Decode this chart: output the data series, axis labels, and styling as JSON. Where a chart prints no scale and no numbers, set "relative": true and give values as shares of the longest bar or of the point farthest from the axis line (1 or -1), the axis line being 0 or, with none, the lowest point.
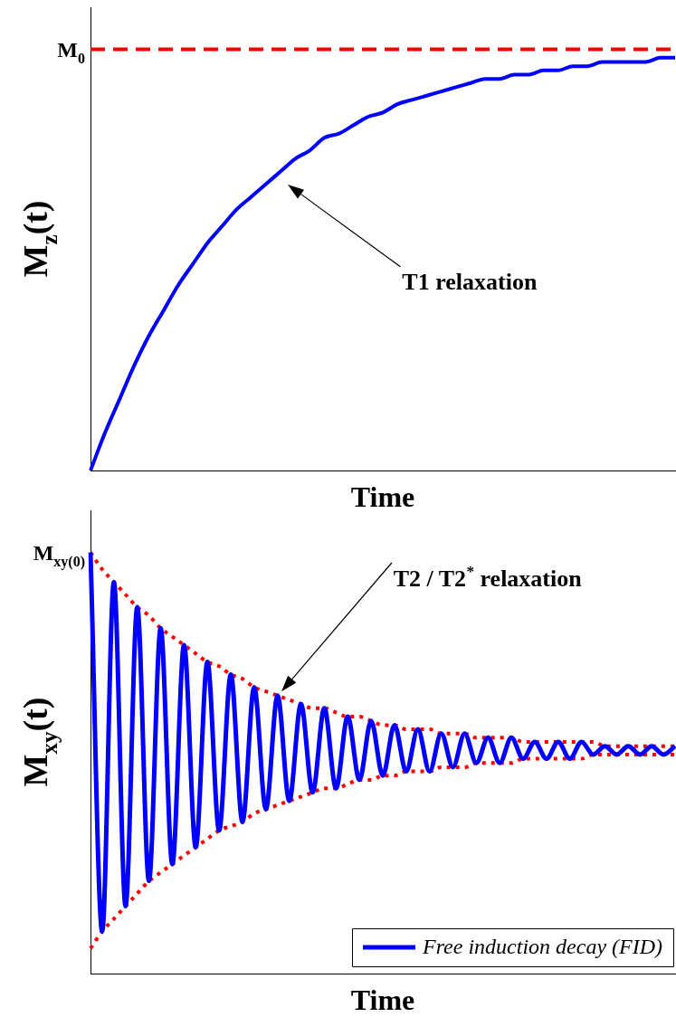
{
  "chart_data": [
    {
      "type": "line",
      "relative": true,
      "xlabel": "Time",
      "ylabel": "M$_{z}$(t)",
      "categories": [
        null,
        null,
        null,
        null,
        null,
        null,
        null,
        null,
        null,
        null,
        null,
        null,
        null,
        null,
        null,
        null,
        null,
        null,
        null,
        null,
        null,
        null,
        null,
        null,
        null,
        null,
        null,
        null,
        null,
        null,
        null,
        null,
        null,
        null,
        null,
        null,
        null,
        null,
        null,
        null,
        null
      ],
      "series": [
        {
          "color": "#0000ff",
          "values": [
            0,
            0.09,
            0.17,
            0.25,
            0.32,
            0.38,
            0.44,
            0.49,
            0.54,
            0.58,
            0.62,
            0.65,
            0.68,
            0.71,
            0.74,
            0.76,
            0.79,
            0.8,
            0.82,
            0.84,
            0.85,
            0.87,
            0.88,
            0.89,
            0.9,
            0.91,
            0.92,
            0.93,
            0.93,
            0.94,
            0.94,
            0.95,
            0.95,
            0.96,
            0.96,
            0.97,
            0.97,
            0.97,
            0.97,
            0.98,
            0.98
          ]
        },
        {
          "color": "#ff0000",
          "line_style": "dashed",
          "values": [
            1,
            1,
            1,
            1,
            1,
            1,
            1,
            1,
            1,
            1,
            1,
            1,
            1,
            1,
            1,
            1,
            1,
            1,
            1,
            1,
            1,
            1,
            1,
            1,
            1,
            1,
            1,
            1,
            1,
            1,
            1,
            1,
            1,
            1,
            1,
            1,
            1,
            1,
            1,
            1,
            1
          ]
        }
      ],
      "annotations": [
        "M$_{0}$",
        "T1 relaxation"
      ]
    },
    {
      "type": "line",
      "relative": true,
      "xlabel": "Time",
      "ylabel": "M$_{xy}$(t)",
      "legend": "bottom right",
      "categories": [
        null,
        null,
        null,
        null,
        null,
        null,
        null,
        null,
        null,
        null,
        null,
        null,
        null,
        null,
        null,
        null,
        null,
        null,
        null,
        null,
        null,
        null,
        null,
        null,
        null,
        null,
        null,
        null,
        null,
        null,
        null,
        null,
        null,
        null,
        null,
        null,
        null,
        null,
        null,
        null,
        null,
        null,
        null,
        null,
        null,
        null,
        null,
        null,
        null,
        null,
        null
      ],
      "series": [
        {
          "name": "Free induction decay (FID)",
          "color": "#0000ff",
          "values": [
            1.0,
            0.1,
            0.93,
            0.16,
            0.87,
            0.22,
            0.82,
            0.26,
            0.78,
            0.3,
            0.74,
            0.34,
            0.71,
            0.36,
            0.68,
            0.39,
            0.66,
            0.41,
            0.64,
            0.43,
            0.63,
            0.44,
            0.61,
            0.46,
            0.6,
            0.47,
            0.59,
            0.48,
            0.58,
            0.48,
            0.57,
            0.49,
            0.57,
            0.5,
            0.56,
            0.5,
            0.56,
            0.51,
            0.55,
            0.51,
            0.55,
            0.51,
            0.55,
            0.52,
            0.54,
            0.52,
            0.54,
            0.52,
            0.54,
            0.52,
            0.54
          ]
        },
        {
          "color": "#ff0000",
          "line_style": "dotted",
          "values": [
            1.0,
            0.96,
            0.93,
            0.9,
            0.87,
            0.85,
            0.82,
            0.8,
            0.78,
            0.76,
            0.74,
            0.73,
            0.71,
            0.7,
            0.68,
            0.67,
            0.66,
            0.65,
            0.64,
            0.63,
            0.63,
            0.62,
            0.61,
            0.61,
            0.6,
            0.59,
            0.59,
            0.58,
            0.58,
            0.58,
            0.57,
            0.57,
            0.57,
            0.56,
            0.56,
            0.56,
            0.56,
            0.55,
            0.55,
            0.55,
            0.55,
            0.55,
            0.55,
            0.55,
            0.54,
            0.54,
            0.54,
            0.54,
            0.54,
            0.54,
            0.54
          ]
        },
        {
          "color": "#ff0000",
          "line_style": "dotted",
          "values": [
            0.06,
            0.1,
            0.13,
            0.16,
            0.19,
            0.22,
            0.24,
            0.26,
            0.28,
            0.3,
            0.32,
            0.34,
            0.35,
            0.36,
            0.38,
            0.39,
            0.4,
            0.41,
            0.42,
            0.43,
            0.44,
            0.44,
            0.45,
            0.46,
            0.46,
            0.47,
            0.47,
            0.48,
            0.48,
            0.48,
            0.49,
            0.49,
            0.49,
            0.5,
            0.5,
            0.5,
            0.5,
            0.51,
            0.51,
            0.51,
            0.51,
            0.51,
            0.51,
            0.52,
            0.52,
            0.52,
            0.52,
            0.52,
            0.52,
            0.52,
            0.52
          ]
        }
      ],
      "annotations": [
        "M$_{xy(0)}$",
        "T2 / T2$^{*}$ relaxation"
      ]
    }
  ]
}
